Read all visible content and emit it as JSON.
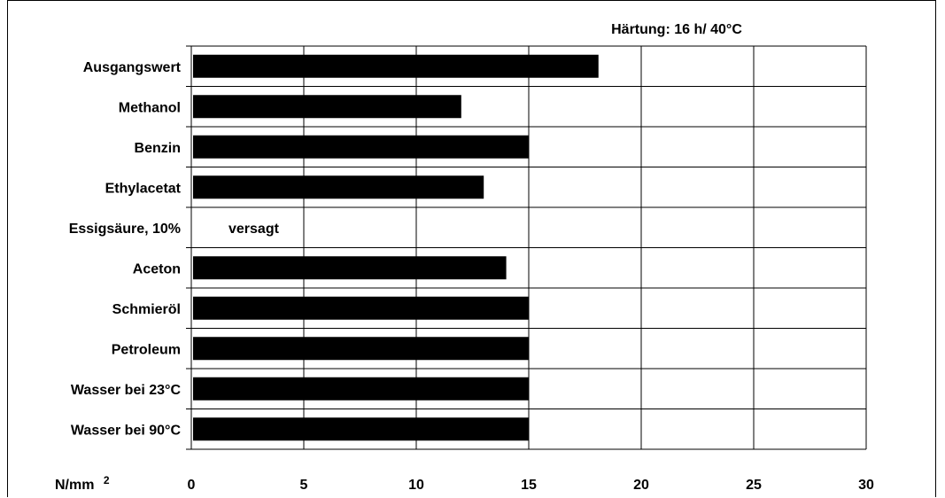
{
  "chart_data": {
    "type": "bar",
    "orientation": "horizontal",
    "annotation": "Härtung: 16 h/ 40°C",
    "unit_label": "N/mm",
    "unit_superscript": "2",
    "categories": [
      "Ausgangswert",
      "Methanol",
      "Benzin",
      "Ethylacetat",
      "Essigsäure, 10%",
      "Aceton",
      "Schmieröl",
      "Petroleum",
      "Wasser bei 23°C",
      "Wasser bei 90°C"
    ],
    "values": [
      18.1,
      12,
      15,
      13,
      null,
      14,
      15,
      15,
      15,
      15
    ],
    "data_labels": [
      "",
      "",
      "",
      "",
      "versagt",
      "",
      "",
      "",
      "",
      ""
    ],
    "xlim": [
      0,
      30
    ],
    "xticks": [
      "0",
      "5",
      "10",
      "15",
      "20",
      "25",
      "30"
    ],
    "grid": true,
    "bar_color": "#000000"
  }
}
